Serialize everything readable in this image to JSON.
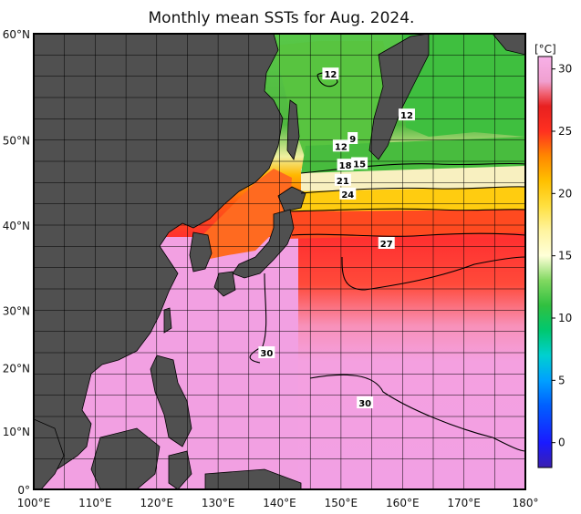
{
  "title": "Monthly mean SSTs for Aug. 2024.",
  "x_axis": {
    "ticks": [
      "100°E",
      "110°E",
      "120°E",
      "130°E",
      "140°E",
      "150°E",
      "160°E",
      "170°E",
      "180°"
    ]
  },
  "y_axis": {
    "ticks": [
      "60°N",
      "50°N",
      "40°N",
      "30°N",
      "20°N",
      "10°N",
      "0°"
    ]
  },
  "contour_labels": [
    {
      "text": "12",
      "lon": 148.3,
      "lat": 54.7
    },
    {
      "text": "12",
      "lon": 160.7,
      "lat": 49.3
    },
    {
      "text": "9",
      "lon": 151.9,
      "lat": 46.2
    },
    {
      "text": "12",
      "lon": 150,
      "lat": 45.2
    },
    {
      "text": "18",
      "lon": 150.7,
      "lat": 42.7
    },
    {
      "text": "15",
      "lon": 153,
      "lat": 42.9
    },
    {
      "text": "21",
      "lon": 150.3,
      "lat": 40.7
    },
    {
      "text": "24",
      "lon": 151.1,
      "lat": 38.9
    },
    {
      "text": "27",
      "lon": 157.4,
      "lat": 32.4
    },
    {
      "text": "30",
      "lon": 137.9,
      "lat": 18
    },
    {
      "text": "30",
      "lon": 153.9,
      "lat": 11.4
    }
  ],
  "colorbar": {
    "unit": "[°C]",
    "ticks": [
      "30",
      "25",
      "20",
      "15",
      "10",
      "5",
      "0"
    ],
    "range": [
      -2,
      31
    ],
    "stops": [
      {
        "t": -2,
        "c": "#3a1fb0"
      },
      {
        "t": 0,
        "c": "#1a1aff"
      },
      {
        "t": 3,
        "c": "#0060ff"
      },
      {
        "t": 5,
        "c": "#00a0ff"
      },
      {
        "t": 7,
        "c": "#00d0d0"
      },
      {
        "t": 9,
        "c": "#00c870"
      },
      {
        "t": 11,
        "c": "#30c040"
      },
      {
        "t": 13,
        "c": "#80d860"
      },
      {
        "t": 15,
        "c": "#ffffd8"
      },
      {
        "t": 17,
        "c": "#fff4a0"
      },
      {
        "t": 19,
        "c": "#ffe040"
      },
      {
        "t": 21,
        "c": "#ffc000"
      },
      {
        "t": 23,
        "c": "#ff8800"
      },
      {
        "t": 25,
        "c": "#ff3020"
      },
      {
        "t": 27,
        "c": "#e82020"
      },
      {
        "t": 28,
        "c": "#f06070"
      },
      {
        "t": 29,
        "c": "#f0a0d0"
      },
      {
        "t": 31,
        "c": "#f8b0e8"
      }
    ]
  },
  "colors": {
    "land": "#505050",
    "coast": "#000000",
    "grid": "#000000",
    "ocean_warm": "#f2a0e2"
  }
}
